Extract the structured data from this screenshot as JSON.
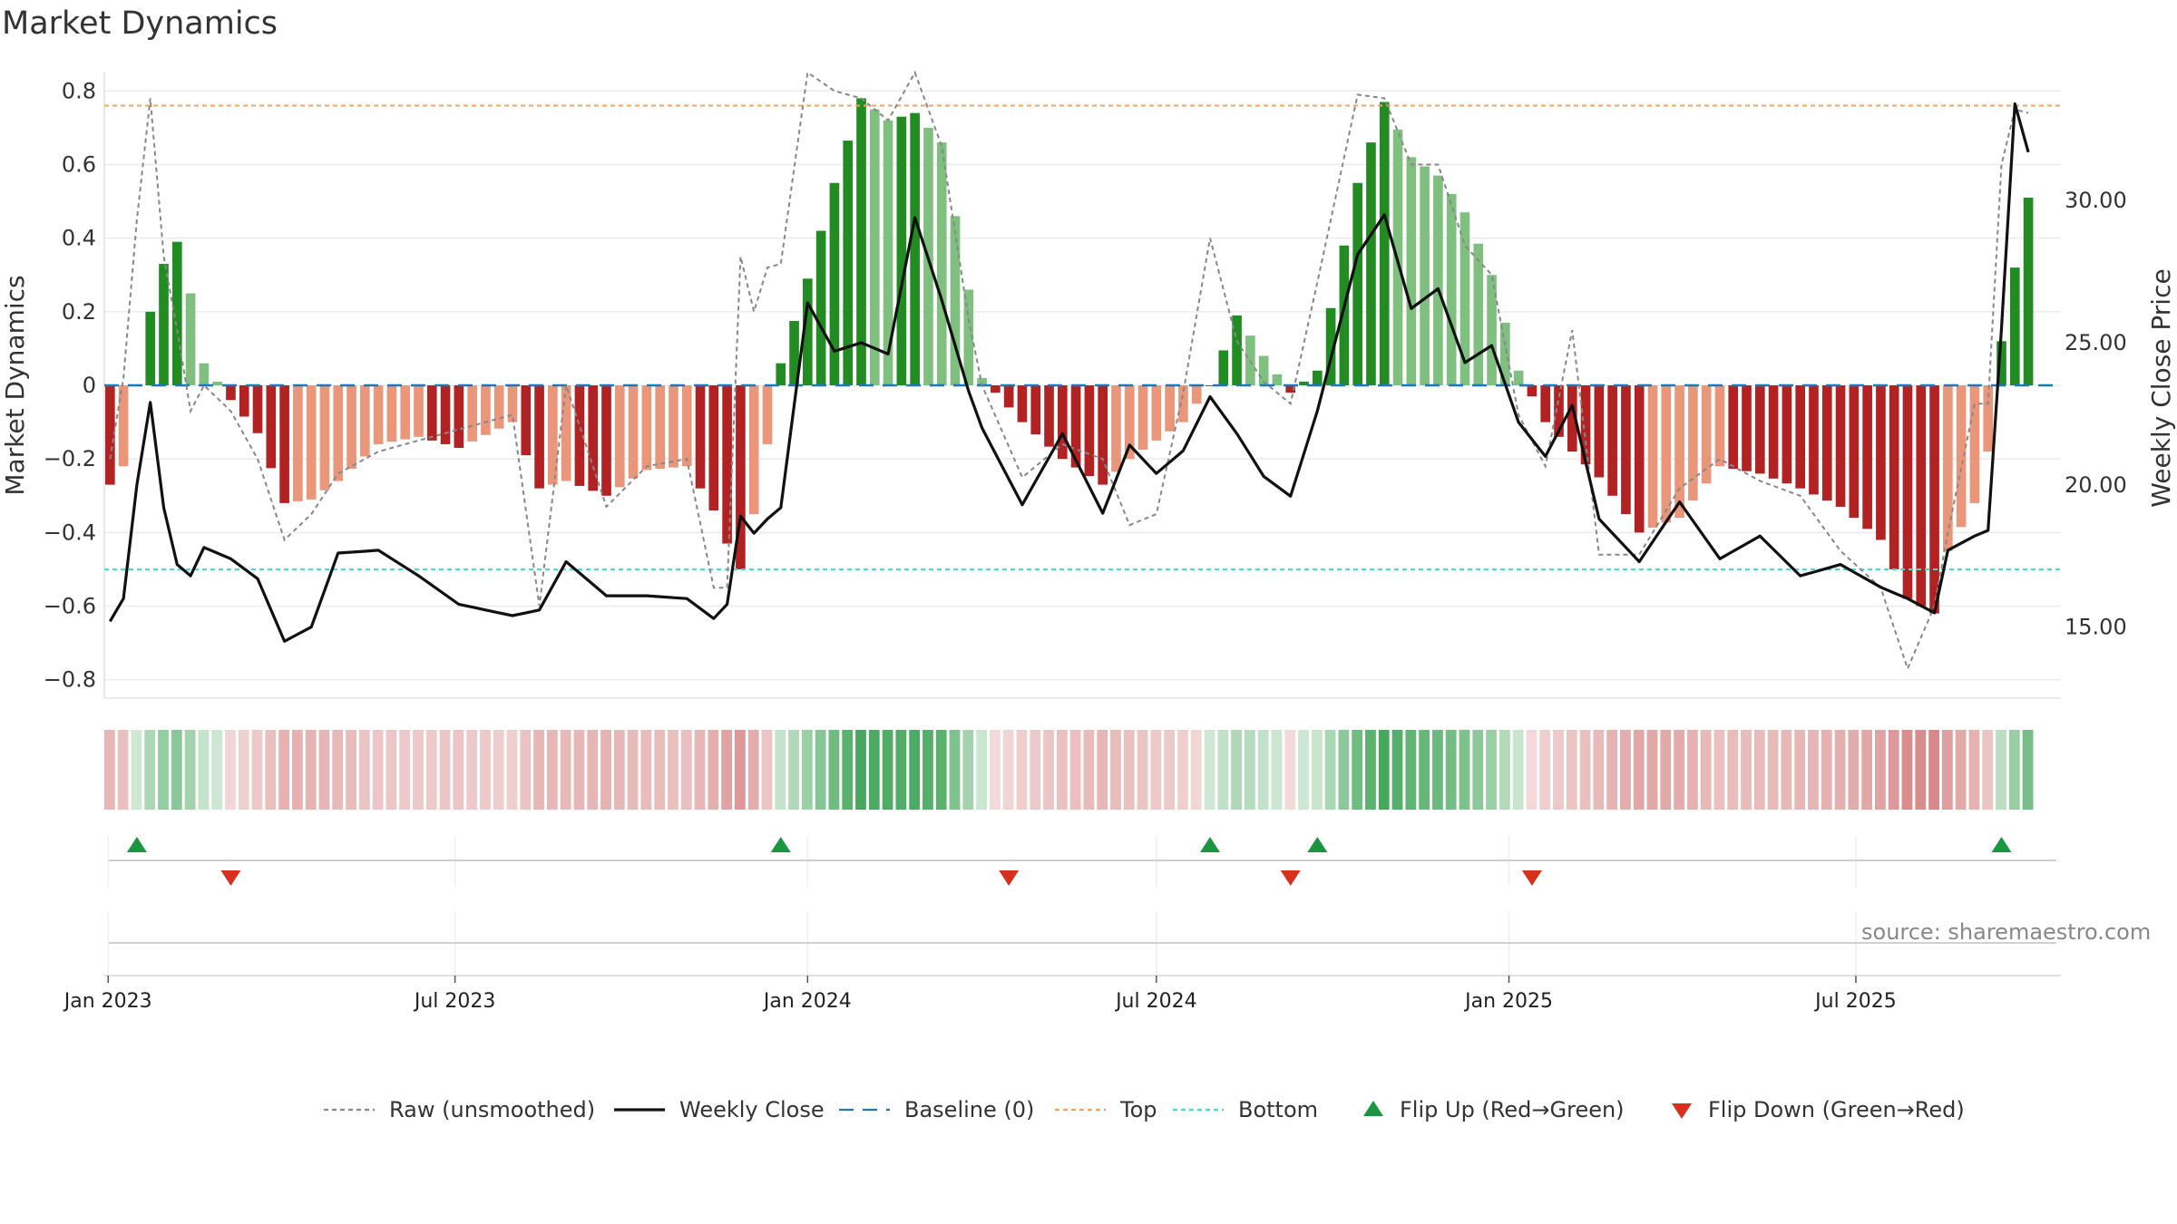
{
  "title": "Market Dynamics",
  "source": "source: sharemaestro.com",
  "colors": {
    "green_strong": "#228b22",
    "green_light": "#7fbf7f",
    "red_strong": "#b22222",
    "red_light": "#e9967a",
    "price": "#111111",
    "raw": "#888888",
    "baseline": "#1f77b4",
    "top": "#f4a460",
    "bottom": "#40e0d0",
    "flip_up": "#1a9641",
    "flip_down": "#d7301f"
  },
  "chart_data": {
    "type": "bar",
    "title": "Market Dynamics",
    "ylabel": "Market Dynamics",
    "y2label": "Weekly Close Price",
    "ylim": [
      -0.85,
      0.85
    ],
    "y2lim": [
      12.5,
      34.5
    ],
    "yticks": [
      -0.8,
      -0.6,
      -0.4,
      -0.2,
      0,
      0.2,
      0.4,
      0.6,
      0.8
    ],
    "yticklabels": [
      "−0.8",
      "−0.6",
      "−0.4",
      "−0.2",
      "0",
      "0.2",
      "0.4",
      "0.6",
      "0.8"
    ],
    "y2ticks": [
      15,
      20,
      25,
      30
    ],
    "y2ticklabels": [
      "15.00",
      "20.00",
      "25.00",
      "30.00"
    ],
    "x_start": "2023-01-02",
    "x_end": "2025-10-13",
    "xticks": [
      "2023-01-01",
      "2023-07-01",
      "2024-01-01",
      "2024-07-01",
      "2025-01-01",
      "2025-07-01"
    ],
    "xticklabels": [
      "Jan 2023",
      "Jul 2023",
      "Jan 2024",
      "Jul 2024",
      "Jan 2025",
      "Jul 2025"
    ],
    "top_level": 0.76,
    "bottom_level": -0.5,
    "anchors": [
      {
        "date": "2023-01-02",
        "v": -0.27,
        "r": -0.2,
        "p": 15.2
      },
      {
        "date": "2023-01-09",
        "v": -0.22,
        "r": 0.02,
        "p": 16.0
      },
      {
        "date": "2023-01-16",
        "v": 0.0,
        "r": 0.45,
        "p": 20.0
      },
      {
        "date": "2023-01-23",
        "v": 0.2,
        "r": 0.78,
        "p": 22.9
      },
      {
        "date": "2023-01-30",
        "v": 0.33,
        "r": 0.35,
        "p": 19.2
      },
      {
        "date": "2023-02-06",
        "v": 0.39,
        "r": 0.15,
        "p": 17.2
      },
      {
        "date": "2023-02-13",
        "v": 0.25,
        "r": -0.07,
        "p": 16.8
      },
      {
        "date": "2023-02-20",
        "v": 0.06,
        "r": 0.0,
        "p": 17.8
      },
      {
        "date": "2023-03-06",
        "v": -0.04,
        "r": -0.07,
        "p": 17.4
      },
      {
        "date": "2023-03-20",
        "v": -0.13,
        "r": -0.2,
        "p": 16.7
      },
      {
        "date": "2023-04-03",
        "v": -0.32,
        "r": -0.42,
        "p": 14.5
      },
      {
        "date": "2023-04-17",
        "v": -0.31,
        "r": -0.35,
        "p": 15.0
      },
      {
        "date": "2023-05-01",
        "v": -0.26,
        "r": -0.24,
        "p": 17.6
      },
      {
        "date": "2023-05-22",
        "v": -0.16,
        "r": -0.18,
        "p": 17.7
      },
      {
        "date": "2023-06-12",
        "v": -0.14,
        "r": -0.15,
        "p": 16.8
      },
      {
        "date": "2023-07-03",
        "v": -0.17,
        "r": -0.12,
        "p": 15.8
      },
      {
        "date": "2023-07-31",
        "v": -0.1,
        "r": -0.08,
        "p": 15.4
      },
      {
        "date": "2023-08-14",
        "v": -0.28,
        "r": -0.6,
        "p": 15.6
      },
      {
        "date": "2023-08-28",
        "v": -0.26,
        "r": 0.0,
        "p": 17.3
      },
      {
        "date": "2023-09-18",
        "v": -0.3,
        "r": -0.33,
        "p": 16.1
      },
      {
        "date": "2023-10-09",
        "v": -0.23,
        "r": -0.22,
        "p": 16.1
      },
      {
        "date": "2023-10-30",
        "v": -0.22,
        "r": -0.2,
        "p": 16.0
      },
      {
        "date": "2023-11-13",
        "v": -0.34,
        "r": -0.55,
        "p": 15.3
      },
      {
        "date": "2023-11-20",
        "v": -0.43,
        "r": -0.55,
        "p": 15.8
      },
      {
        "date": "2023-11-27",
        "v": -0.5,
        "r": 0.35,
        "p": 18.9
      },
      {
        "date": "2023-12-04",
        "v": -0.35,
        "r": 0.2,
        "p": 18.3
      },
      {
        "date": "2023-12-11",
        "v": -0.16,
        "r": 0.32,
        "p": 18.8
      },
      {
        "date": "2023-12-18",
        "v": 0.06,
        "r": 0.33,
        "p": 19.2
      },
      {
        "date": "2024-01-01",
        "v": 0.29,
        "r": 0.85,
        "p": 26.4
      },
      {
        "date": "2024-01-15",
        "v": 0.55,
        "r": 0.8,
        "p": 24.7
      },
      {
        "date": "2024-01-29",
        "v": 0.78,
        "r": 0.78,
        "p": 25.0
      },
      {
        "date": "2024-02-12",
        "v": 0.72,
        "r": 0.72,
        "p": 24.6
      },
      {
        "date": "2024-02-26",
        "v": 0.74,
        "r": 0.85,
        "p": 29.4
      },
      {
        "date": "2024-03-11",
        "v": 0.66,
        "r": 0.65,
        "p": 26.5
      },
      {
        "date": "2024-03-25",
        "v": 0.26,
        "r": 0.18,
        "p": 23.3
      },
      {
        "date": "2024-04-01",
        "v": 0.02,
        "r": 0.0,
        "p": 22.0
      },
      {
        "date": "2024-04-22",
        "v": -0.1,
        "r": -0.25,
        "p": 19.3
      },
      {
        "date": "2024-05-13",
        "v": -0.2,
        "r": -0.16,
        "p": 21.8
      },
      {
        "date": "2024-06-03",
        "v": -0.27,
        "r": -0.2,
        "p": 19.0
      },
      {
        "date": "2024-06-17",
        "v": -0.2,
        "r": -0.38,
        "p": 21.4
      },
      {
        "date": "2024-07-01",
        "v": -0.15,
        "r": -0.35,
        "p": 20.4
      },
      {
        "date": "2024-07-15",
        "v": -0.1,
        "r": -0.02,
        "p": 21.2
      },
      {
        "date": "2024-07-29",
        "v": 0.0,
        "r": 0.4,
        "p": 23.1
      },
      {
        "date": "2024-08-12",
        "v": 0.19,
        "r": 0.12,
        "p": 21.8
      },
      {
        "date": "2024-08-26",
        "v": 0.08,
        "r": 0.01,
        "p": 20.3
      },
      {
        "date": "2024-09-09",
        "v": -0.02,
        "r": -0.05,
        "p": 19.6
      },
      {
        "date": "2024-09-23",
        "v": 0.04,
        "r": 0.28,
        "p": 22.6
      },
      {
        "date": "2024-10-14",
        "v": 0.55,
        "r": 0.79,
        "p": 28.1
      },
      {
        "date": "2024-10-28",
        "v": 0.77,
        "r": 0.78,
        "p": 29.5
      },
      {
        "date": "2024-11-11",
        "v": 0.62,
        "r": 0.6,
        "p": 26.2
      },
      {
        "date": "2024-11-25",
        "v": 0.57,
        "r": 0.6,
        "p": 26.9
      },
      {
        "date": "2024-12-09",
        "v": 0.47,
        "r": 0.38,
        "p": 24.3
      },
      {
        "date": "2024-12-23",
        "v": 0.3,
        "r": 0.3,
        "p": 24.9
      },
      {
        "date": "2025-01-06",
        "v": 0.04,
        "r": -0.08,
        "p": 22.2
      },
      {
        "date": "2025-01-20",
        "v": -0.1,
        "r": -0.22,
        "p": 21.0
      },
      {
        "date": "2025-02-03",
        "v": -0.18,
        "r": 0.15,
        "p": 22.8
      },
      {
        "date": "2025-02-17",
        "v": -0.25,
        "r": -0.46,
        "p": 18.8
      },
      {
        "date": "2025-03-10",
        "v": -0.4,
        "r": -0.46,
        "p": 17.3
      },
      {
        "date": "2025-03-31",
        "v": -0.36,
        "r": -0.28,
        "p": 19.4
      },
      {
        "date": "2025-04-21",
        "v": -0.22,
        "r": -0.2,
        "p": 17.4
      },
      {
        "date": "2025-05-12",
        "v": -0.24,
        "r": -0.26,
        "p": 18.2
      },
      {
        "date": "2025-06-02",
        "v": -0.28,
        "r": -0.3,
        "p": 16.8
      },
      {
        "date": "2025-06-23",
        "v": -0.33,
        "r": -0.45,
        "p": 17.2
      },
      {
        "date": "2025-07-14",
        "v": -0.42,
        "r": -0.55,
        "p": 16.4
      },
      {
        "date": "2025-07-28",
        "v": -0.58,
        "r": -0.77,
        "p": 16.0
      },
      {
        "date": "2025-08-11",
        "v": -0.62,
        "r": -0.6,
        "p": 15.5
      },
      {
        "date": "2025-08-18",
        "v": -0.45,
        "r": -0.4,
        "p": 17.7
      },
      {
        "date": "2025-09-01",
        "v": -0.32,
        "r": -0.05,
        "p": 18.2
      },
      {
        "date": "2025-09-08",
        "v": -0.18,
        "r": -0.05,
        "p": 18.4
      },
      {
        "date": "2025-09-15",
        "v": 0.12,
        "r": 0.6,
        "p": 25.5
      },
      {
        "date": "2025-09-22",
        "v": 0.32,
        "r": 0.75,
        "p": 33.4
      },
      {
        "date": "2025-09-29",
        "v": 0.51,
        "r": 0.74,
        "p": 31.7
      }
    ],
    "flips_up": [
      "2023-01-16",
      "2023-12-18",
      "2024-07-29",
      "2024-09-23",
      "2025-09-15"
    ],
    "flips_down": [
      "2023-03-06",
      "2024-04-15",
      "2024-09-09",
      "2025-01-13"
    ]
  },
  "legend": [
    {
      "label": "Raw (unsmoothed)",
      "kind": "dotted",
      "color": "#888888"
    },
    {
      "label": "Weekly Close",
      "kind": "solid",
      "color": "#111111"
    },
    {
      "label": "Baseline (0)",
      "kind": "dashed",
      "color": "#1f77b4"
    },
    {
      "label": "Top",
      "kind": "dotted",
      "color": "#f4a460"
    },
    {
      "label": "Bottom",
      "kind": "dotted",
      "color": "#40e0d0"
    },
    {
      "label": "Flip Up (Red→Green)",
      "kind": "tri-up",
      "color": "#1a9641"
    },
    {
      "label": "Flip Down (Green→Red)",
      "kind": "tri-down",
      "color": "#d7301f"
    }
  ]
}
